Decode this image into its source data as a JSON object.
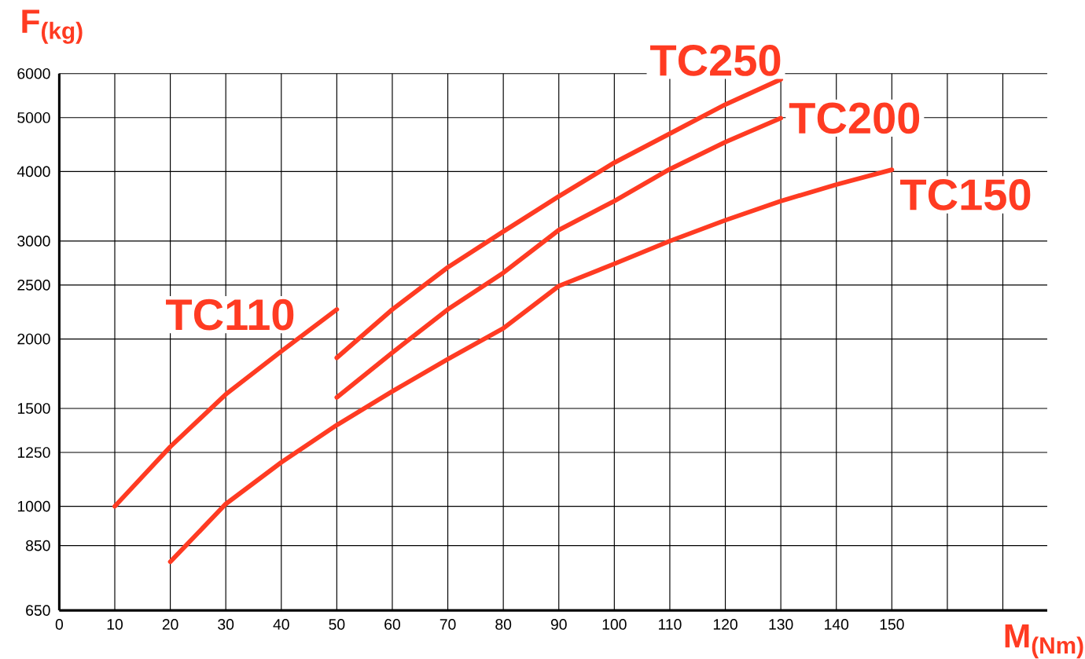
{
  "chart_data": {
    "type": "line",
    "xlabel": "M$_{(Nm)}$",
    "ylabel": "F$_{(kg)}$",
    "log": "y",
    "grid": true,
    "xlim": [
      0,
      178
    ],
    "ylim": [
      650,
      6000
    ],
    "xticks": [
      0,
      10,
      20,
      30,
      40,
      50,
      60,
      70,
      80,
      90,
      100,
      110,
      120,
      130,
      140,
      150,
      {
        "value": 160,
        "label": null
      },
      {
        "value": 170,
        "label": null
      }
    ],
    "yticks": [
      650,
      850,
      1000,
      1250,
      1500,
      2000,
      2500,
      3000,
      4000,
      5000,
      6000
    ],
    "series": [
      {
        "name": "TC110",
        "color": "#ff3b22",
        "x": [
          10,
          20,
          30,
          40,
          50
        ],
        "values": [
          1000,
          1280,
          1590,
          1900,
          2260
        ]
      },
      {
        "name": "TC150",
        "color": "#ff3b22",
        "x": [
          20,
          30,
          40,
          50,
          60,
          70,
          80,
          90,
          100,
          110,
          120,
          130,
          140,
          150
        ],
        "values": [
          795,
          1010,
          1200,
          1400,
          1610,
          1840,
          2090,
          2490,
          2730,
          3000,
          3270,
          3540,
          3790,
          4030
        ]
      },
      {
        "name": "TC200",
        "color": "#ff3b22",
        "x": [
          50,
          60,
          70,
          80,
          90,
          100,
          110,
          120,
          130
        ],
        "values": [
          1570,
          1890,
          2260,
          2630,
          3140,
          3540,
          4040,
          4520,
          4990
        ]
      },
      {
        "name": "TC250",
        "color": "#ff3b22",
        "x": [
          50,
          60,
          70,
          80,
          90,
          100,
          110,
          120,
          130
        ],
        "values": [
          1850,
          2260,
          2690,
          3120,
          3610,
          4150,
          4680,
          5280,
          5860
        ]
      }
    ]
  }
}
